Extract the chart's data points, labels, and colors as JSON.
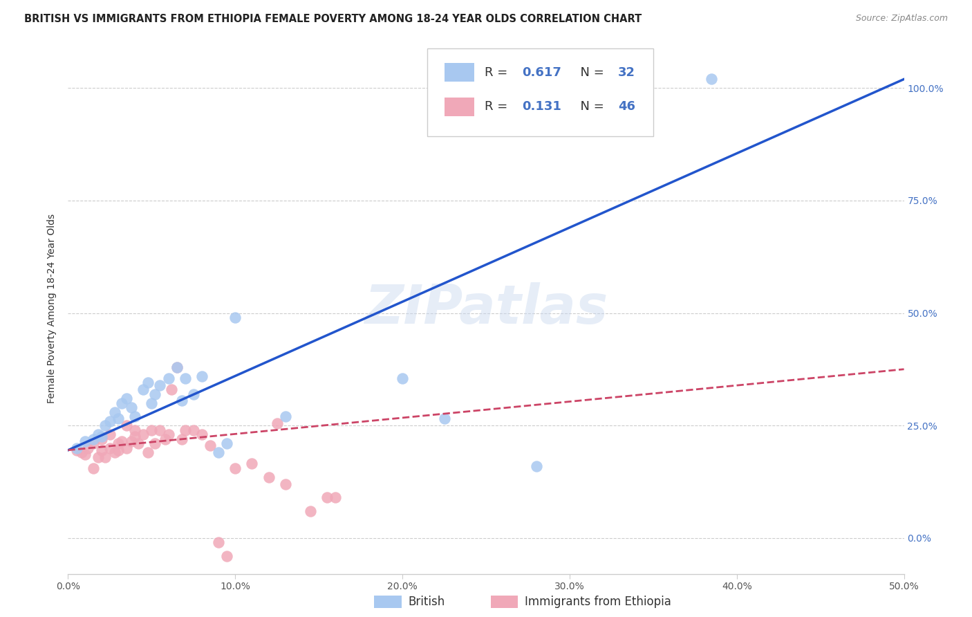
{
  "title": "BRITISH VS IMMIGRANTS FROM ETHIOPIA FEMALE POVERTY AMONG 18-24 YEAR OLDS CORRELATION CHART",
  "source": "Source: ZipAtlas.com",
  "ylabel": "Female Poverty Among 18-24 Year Olds",
  "xlim": [
    0.0,
    0.5
  ],
  "ylim": [
    -0.08,
    1.1
  ],
  "xticks": [
    0.0,
    0.1,
    0.2,
    0.3,
    0.4,
    0.5
  ],
  "xticklabels": [
    "0.0%",
    "10.0%",
    "20.0%",
    "30.0%",
    "40.0%",
    "50.0%"
  ],
  "yticks": [
    0.0,
    0.25,
    0.5,
    0.75,
    1.0
  ],
  "yticklabels_right": [
    "0.0%",
    "25.0%",
    "50.0%",
    "75.0%",
    "100.0%"
  ],
  "british_R": "0.617",
  "british_N": "32",
  "ethiopia_R": "0.131",
  "ethiopia_N": "46",
  "british_color": "#a8c8f0",
  "british_line_color": "#2255cc",
  "ethiopia_color": "#f0a8b8",
  "ethiopia_line_color": "#cc4466",
  "british_trendline_x0": 0.0,
  "british_trendline_y0": 0.195,
  "british_trendline_x1": 0.5,
  "british_trendline_y1": 1.02,
  "ethiopia_trendline_x0": 0.0,
  "ethiopia_trendline_y0": 0.195,
  "ethiopia_trendline_x1": 0.5,
  "ethiopia_trendline_y1": 0.375,
  "british_scatter_x": [
    0.005,
    0.01,
    0.015,
    0.018,
    0.02,
    0.022,
    0.025,
    0.028,
    0.03,
    0.032,
    0.035,
    0.038,
    0.04,
    0.045,
    0.048,
    0.05,
    0.052,
    0.055,
    0.06,
    0.065,
    0.068,
    0.07,
    0.075,
    0.08,
    0.09,
    0.095,
    0.1,
    0.13,
    0.2,
    0.225,
    0.28,
    0.385
  ],
  "british_scatter_y": [
    0.2,
    0.215,
    0.22,
    0.23,
    0.225,
    0.25,
    0.26,
    0.28,
    0.265,
    0.3,
    0.31,
    0.29,
    0.27,
    0.33,
    0.345,
    0.3,
    0.32,
    0.34,
    0.355,
    0.38,
    0.305,
    0.355,
    0.32,
    0.36,
    0.19,
    0.21,
    0.49,
    0.27,
    0.355,
    0.265,
    0.16,
    1.02
  ],
  "ethiopia_scatter_x": [
    0.005,
    0.008,
    0.01,
    0.012,
    0.015,
    0.015,
    0.018,
    0.02,
    0.02,
    0.022,
    0.025,
    0.025,
    0.028,
    0.03,
    0.03,
    0.032,
    0.035,
    0.035,
    0.038,
    0.04,
    0.04,
    0.042,
    0.045,
    0.048,
    0.05,
    0.052,
    0.055,
    0.058,
    0.06,
    0.062,
    0.065,
    0.068,
    0.07,
    0.075,
    0.08,
    0.085,
    0.09,
    0.095,
    0.1,
    0.11,
    0.12,
    0.125,
    0.13,
    0.145,
    0.155,
    0.16
  ],
  "ethiopia_scatter_y": [
    0.195,
    0.19,
    0.185,
    0.2,
    0.155,
    0.21,
    0.18,
    0.195,
    0.22,
    0.18,
    0.2,
    0.23,
    0.19,
    0.21,
    0.195,
    0.215,
    0.2,
    0.25,
    0.215,
    0.225,
    0.24,
    0.21,
    0.23,
    0.19,
    0.24,
    0.21,
    0.24,
    0.22,
    0.23,
    0.33,
    0.38,
    0.22,
    0.24,
    0.24,
    0.23,
    0.205,
    -0.01,
    -0.04,
    0.155,
    0.165,
    0.135,
    0.255,
    0.12,
    0.06,
    0.09,
    0.09
  ],
  "watermark": "ZIPatlas",
  "background_color": "#ffffff",
  "grid_color": "#cccccc"
}
